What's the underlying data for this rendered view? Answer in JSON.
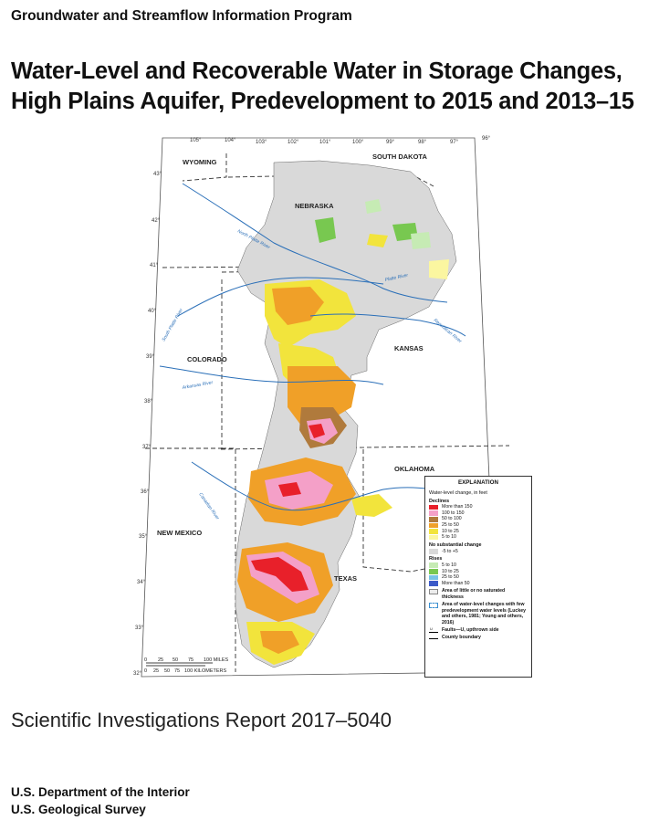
{
  "header": {
    "program": "Groundwater and Streamflow Information Program",
    "title_line1": "Water-Level and Recoverable Water in Storage Changes,",
    "title_line2": "High Plains Aquifer, Predevelopment to 2015 and 2013–15"
  },
  "map": {
    "longitudes": [
      "105°",
      "104°",
      "103°",
      "102°",
      "101°",
      "100°",
      "99°",
      "98°",
      "97°",
      "96°"
    ],
    "latitudes": [
      "43°",
      "42°",
      "41°",
      "40°",
      "39°",
      "38°",
      "37°",
      "36°",
      "35°",
      "34°",
      "33°",
      "32°"
    ],
    "states": [
      "WYOMING",
      "SOUTH DAKOTA",
      "NEBRASKA",
      "COLORADO",
      "KANSAS",
      "OKLAHOMA",
      "NEW MEXICO",
      "TEXAS"
    ],
    "rivers": [
      "North Platte River",
      "Platte River",
      "South Platte River",
      "Republican River",
      "Arkansas River",
      "Canadian River"
    ],
    "scale_miles": [
      "0",
      "25",
      "50",
      "75",
      "100 MILES"
    ],
    "scale_km": [
      "0",
      "25",
      "50",
      "75",
      "100 KILOMETERS"
    ],
    "colors": {
      "decline_gt150": "#e8202a",
      "decline_100_150": "#f4a0c8",
      "decline_50_100": "#b07a3c",
      "decline_25_50": "#f0a028",
      "decline_10_25": "#f2e43c",
      "decline_5_10": "#fbf6a0",
      "no_change": "#d9d9d9",
      "rise_5_10": "#c6ebb4",
      "rise_10_25": "#78c850",
      "rise_25_50": "#78c3e6",
      "rise_gt50": "#3c5ac8",
      "river": "#2a6fb8"
    }
  },
  "legend": {
    "title": "EXPLANATION",
    "subtitle": "Water-level change, in feet",
    "declines_heading": "Declines",
    "declines": [
      "More than 150",
      "100 to 150",
      "50 to 100",
      "25 to 50",
      "10 to 25",
      "5 to 10"
    ],
    "no_change_heading": "No substantial change",
    "no_change": "-5 to +5",
    "rises_heading": "Rises",
    "rises": [
      "5 to 10",
      "10 to 25",
      "25 to 50",
      "More than 50"
    ],
    "little_saturated": "Area of little or no saturated thickness",
    "few_predevelopment": "Area of water-level changes with few predevelopment water levels (Luckey and others, 1981; Young and others, 2016)",
    "faults": "Faults—U, upthrown side",
    "fault_u": "U",
    "county": "County boundary"
  },
  "footer": {
    "report": "Scientific Investigations Report 2017–5040",
    "dept": "U.S. Department of the Interior",
    "agency": "U.S. Geological Survey"
  }
}
